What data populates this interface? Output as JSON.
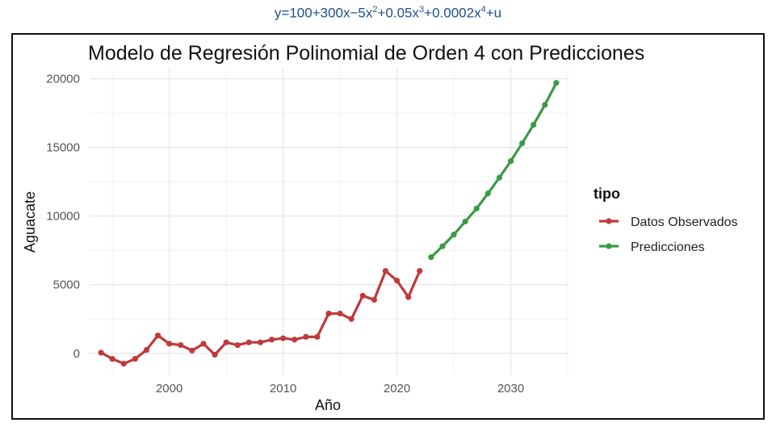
{
  "equation": {
    "prefix": "y=100+300x−5x",
    "exp2": "2",
    "mid1": "+0.05x",
    "exp3": "3",
    "mid2": "+0.0002x",
    "exp4": "4",
    "suffix": "+u"
  },
  "chart_data": {
    "type": "line",
    "title": "Modelo de Regresión Polinomial de Orden 4 con Predicciones",
    "xlabel": "Año",
    "ylabel": "Aguacate",
    "xlim": [
      1993,
      2035
    ],
    "ylim": [
      -1600,
      20800
    ],
    "xticks": [
      2000,
      2010,
      2020,
      2030
    ],
    "yticks": [
      0,
      5000,
      10000,
      15000,
      20000
    ],
    "grid": true,
    "legend": {
      "title": "tipo",
      "position": "right"
    },
    "series": [
      {
        "name": "Datos Observados",
        "color": "#c0393b",
        "x": [
          1994,
          1995,
          1996,
          1997,
          1998,
          1999,
          2000,
          2001,
          2002,
          2003,
          2004,
          2005,
          2006,
          2007,
          2008,
          2009,
          2010,
          2011,
          2012,
          2013,
          2014,
          2015,
          2016,
          2017,
          2018,
          2019,
          2020,
          2021,
          2022
        ],
        "y": [
          50,
          -400,
          -750,
          -400,
          250,
          1300,
          700,
          600,
          200,
          700,
          -100,
          800,
          600,
          800,
          800,
          1000,
          1100,
          1000,
          1200,
          1200,
          2900,
          2900,
          2500,
          4200,
          3900,
          6000,
          5300,
          4100,
          6000
        ]
      },
      {
        "name": "Predicciones",
        "color": "#3a9a46",
        "x": [
          2023,
          2024,
          2025,
          2026,
          2027,
          2028,
          2029,
          2030,
          2031,
          2032,
          2033,
          2034
        ],
        "y": [
          7000,
          7800,
          8650,
          9600,
          10550,
          11650,
          12800,
          14000,
          15300,
          16650,
          18100,
          19700
        ]
      }
    ]
  }
}
